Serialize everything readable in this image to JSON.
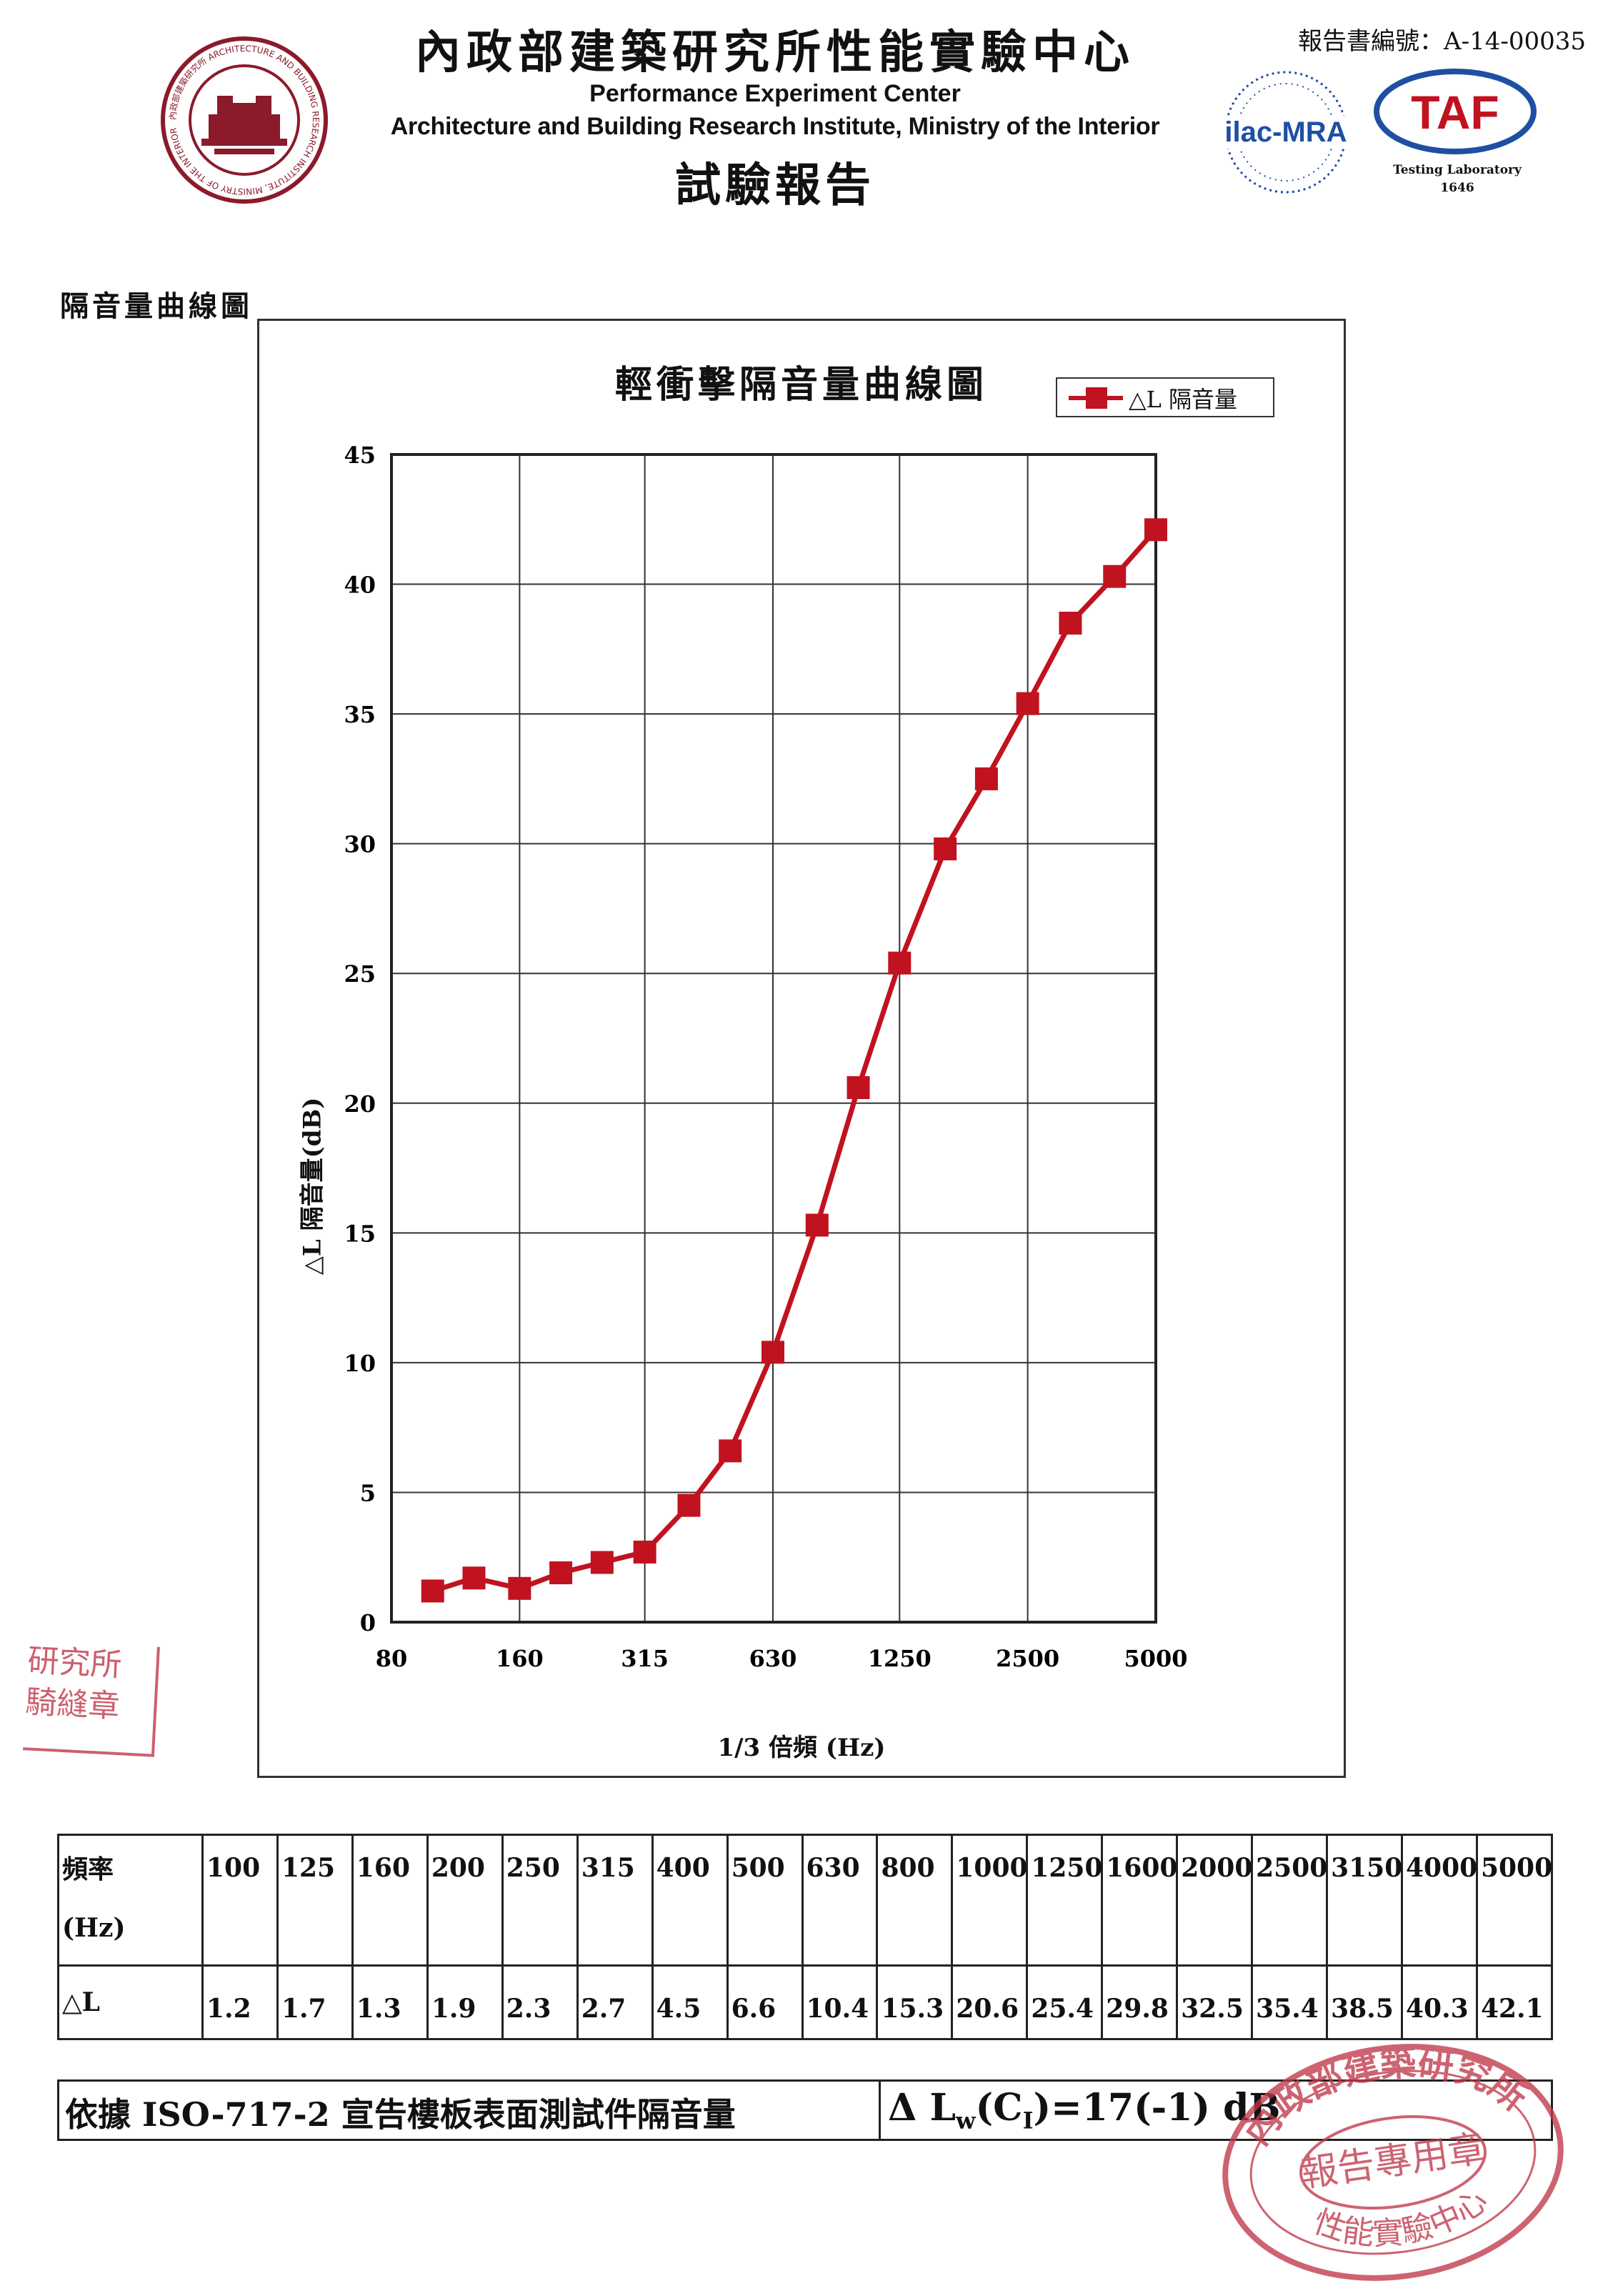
{
  "header": {
    "title_cn": "內政部建築研究所性能實驗中心",
    "title_en_1": "Performance Experiment Center",
    "title_en_2": "Architecture and Building Research Institute, Ministry of the Interior",
    "subtitle_cn": "試驗報告",
    "report_no": "報告書編號：A-14-00035",
    "seal_text": "內政部建築研究所 ARCHITECTURE AND BUILDING RESEARCH INSTITUTE, MINISTRY OF THE INTERIOR",
    "ilac_text": "ilac-MRA",
    "taf_text": "TAF",
    "taf_caption_1": "Testing Laboratory",
    "taf_caption_2": "1646"
  },
  "section_title": "隔音量曲線圖",
  "chart_data": {
    "type": "line",
    "title": "輕衝擊隔音量曲線圖",
    "xlabel": "1/3 倍頻 (Hz)",
    "ylabel": "△L 隔音量(dB)",
    "x_scale": "log",
    "x_ticks": [
      "80",
      "160",
      "315",
      "630",
      "1250",
      "2500",
      "5000"
    ],
    "x_tick_values": [
      80,
      160,
      315,
      630,
      1250,
      2500,
      5000
    ],
    "ylim": [
      0,
      45
    ],
    "y_ticks": [
      0,
      5,
      10,
      15,
      20,
      25,
      30,
      35,
      40,
      45
    ],
    "grid": true,
    "legend_position": "top-right",
    "marker": "square",
    "color": "#c1121f",
    "x": [
      100,
      125,
      160,
      200,
      250,
      315,
      400,
      500,
      630,
      800,
      1000,
      1250,
      1600,
      2000,
      2500,
      3150,
      4000,
      5000
    ],
    "series": [
      {
        "name": "△L 隔音量",
        "values": [
          1.2,
          1.7,
          1.3,
          1.9,
          2.3,
          2.7,
          4.5,
          6.6,
          10.4,
          15.3,
          20.6,
          25.4,
          29.8,
          32.5,
          35.4,
          38.5,
          40.3,
          42.1
        ]
      }
    ]
  },
  "table": {
    "freq_label_1": "頻率",
    "freq_label_2": "(Hz)",
    "dl_label": "△L",
    "frequencies": [
      "100",
      "125",
      "160",
      "200",
      "250",
      "315",
      "400",
      "500",
      "630",
      "800",
      "1000",
      "1250",
      "1600",
      "2000",
      "2500",
      "3150",
      "4000",
      "5000"
    ],
    "values": [
      "1.2",
      "1.7",
      "1.3",
      "1.9",
      "2.3",
      "2.7",
      "4.5",
      "6.6",
      "10.4",
      "15.3",
      "20.6",
      "25.4",
      "29.8",
      "32.5",
      "35.4",
      "38.5",
      "40.3",
      "42.1"
    ]
  },
  "declaration": {
    "left": "依據 ISO-717-2 宣告樓板表面測試件隔音量",
    "right_prefix": "Δ L",
    "right_sub_w": "w",
    "right_mid": "(C",
    "right_sub_i": "I",
    "right_suffix": ")=17(-1) dB"
  },
  "stamps": {
    "left_line_1": "研究所",
    "left_line_2": "騎縫章",
    "round_top": "內政部建築研究所",
    "round_center": "報告專用章",
    "round_bottom": "性能實驗中心"
  }
}
